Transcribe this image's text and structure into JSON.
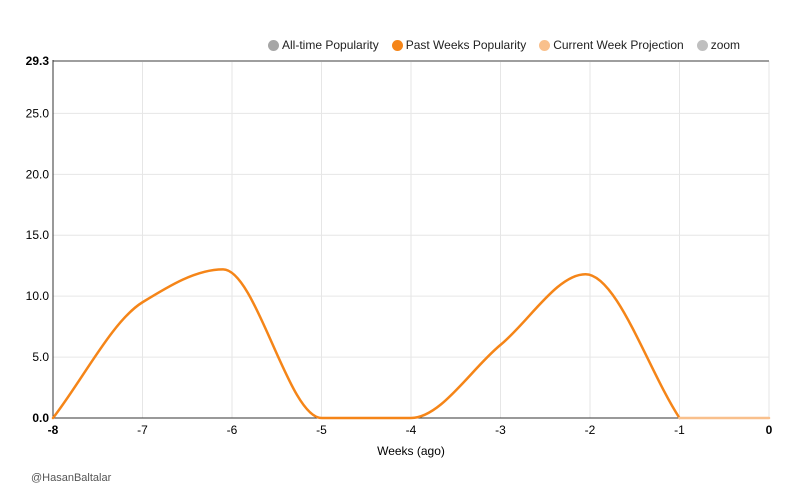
{
  "legend": [
    {
      "label": "All-time Popularity",
      "color": "#a6a6a6"
    },
    {
      "label": "Past Weeks Popularity",
      "color": "#f58518"
    },
    {
      "label": "Current Week Projection",
      "color": "#f9c08c"
    },
    {
      "label": "zoom",
      "color": "#bfbfbf"
    }
  ],
  "credit": "@HasanBaltalar",
  "chart_data": {
    "type": "line",
    "xlabel": "Weeks (ago)",
    "ylabel": "",
    "xlim": [
      -8,
      0
    ],
    "ylim": [
      0,
      29.3
    ],
    "x_ticks": [
      -8,
      -7,
      -6,
      -5,
      -4,
      -3,
      -2,
      -1,
      0
    ],
    "y_ticks": [
      0.0,
      5.0,
      10.0,
      15.0,
      20.0,
      25.0,
      29.3
    ],
    "y_tick_labels": [
      "0.0",
      "5.0",
      "10.0",
      "15.0",
      "20.0",
      "25.0",
      "29.3"
    ],
    "grid": true,
    "legend_position": "top-right",
    "series": [
      {
        "name": "Past Weeks Popularity",
        "color": "#f58518",
        "x": [
          -8,
          -7,
          -6.1,
          -5,
          -4,
          -3,
          -2.05,
          -1
        ],
        "values": [
          0.0,
          9.5,
          12.2,
          0.0,
          0.0,
          6.0,
          11.8,
          0.0
        ]
      },
      {
        "name": "Current Week Projection",
        "color": "#f9c08c",
        "x": [
          -1,
          0
        ],
        "values": [
          0.0,
          0.0
        ]
      }
    ]
  }
}
